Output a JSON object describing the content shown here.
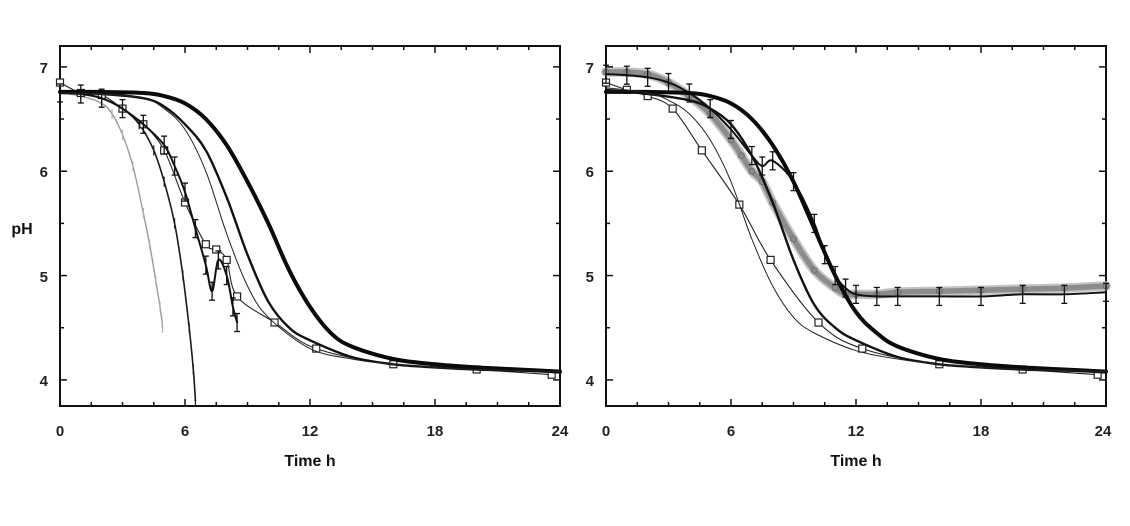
{
  "chart_data": [
    {
      "type": "line",
      "title": "",
      "xlabel": "Time h",
      "ylabel": "pH",
      "xlim": [
        0,
        24
      ],
      "ylim": [
        3.75,
        7.2
      ],
      "x_ticks": [
        "0",
        "6",
        "12",
        "18",
        "24"
      ],
      "y_ticks": [
        "4",
        "5",
        "6",
        "7"
      ],
      "grid": false,
      "series": [
        {
          "style": "gray-thin",
          "x": [
            0,
            1,
            2,
            2.5,
            3,
            3.5,
            4,
            4.3,
            4.6,
            4.8,
            4.9,
            4.92
          ],
          "y": [
            6.75,
            6.72,
            6.65,
            6.55,
            6.35,
            6.05,
            5.6,
            5.3,
            4.95,
            4.7,
            4.55,
            4.5
          ]
        },
        {
          "style": "dark-thin-ticks",
          "x": [
            0,
            1,
            2,
            3,
            3.8,
            4.5,
            5,
            5.5,
            5.9,
            6.2,
            6.4,
            6.5
          ],
          "y": [
            6.75,
            6.74,
            6.7,
            6.6,
            6.45,
            6.2,
            5.9,
            5.5,
            5.0,
            4.5,
            4.1,
            3.8
          ]
        },
        {
          "style": "squares",
          "x": [
            0,
            1,
            2,
            3,
            4,
            5,
            6,
            7,
            7.5,
            8,
            8.5,
            10.3,
            12.3,
            16,
            20,
            23.6
          ],
          "y": [
            6.85,
            6.75,
            6.73,
            6.6,
            6.45,
            6.2,
            5.7,
            5.3,
            5.25,
            5.15,
            4.8,
            4.55,
            4.3,
            4.15,
            4.1,
            4.05
          ]
        },
        {
          "style": "errorbars",
          "x": [
            0,
            1,
            2,
            3,
            4,
            5,
            5.5,
            6,
            6.5,
            7,
            7.3,
            7.6,
            8,
            8.3,
            8.5
          ],
          "y": [
            6.75,
            6.74,
            6.7,
            6.6,
            6.45,
            6.25,
            6.05,
            5.8,
            5.45,
            5.1,
            4.85,
            5.15,
            5.0,
            4.7,
            4.55
          ]
        },
        {
          "style": "medium",
          "x": [
            0,
            2,
            4,
            5,
            6,
            7,
            8,
            9,
            10,
            11,
            12,
            14,
            16,
            18,
            20,
            22,
            24
          ],
          "y": [
            6.75,
            6.74,
            6.7,
            6.62,
            6.45,
            6.2,
            5.75,
            5.2,
            4.75,
            4.5,
            4.38,
            4.22,
            4.15,
            4.12,
            4.1,
            4.09,
            4.08
          ]
        },
        {
          "style": "bold",
          "x": [
            0,
            2,
            4,
            5,
            6,
            7,
            8,
            9,
            10,
            11,
            12,
            13,
            14,
            16,
            18,
            20,
            22,
            24
          ],
          "y": [
            6.76,
            6.76,
            6.75,
            6.72,
            6.65,
            6.5,
            6.25,
            5.9,
            5.5,
            5.05,
            4.7,
            4.45,
            4.32,
            4.2,
            4.15,
            4.12,
            4.1,
            4.08
          ]
        },
        {
          "style": "thin",
          "x": [
            0,
            2,
            4,
            5,
            6,
            7,
            8,
            9,
            10,
            12,
            14,
            16,
            18,
            20,
            22,
            24
          ],
          "y": [
            6.75,
            6.74,
            6.7,
            6.6,
            6.4,
            6.0,
            5.4,
            4.9,
            4.6,
            4.3,
            4.2,
            4.15,
            4.12,
            4.1,
            4.09,
            4.08
          ]
        }
      ]
    },
    {
      "type": "line",
      "title": "",
      "xlabel": "Time h",
      "ylabel": "",
      "xlim": [
        0,
        24
      ],
      "ylim": [
        3.75,
        7.2
      ],
      "x_ticks": [
        "0",
        "6",
        "12",
        "18",
        "24"
      ],
      "y_ticks": [
        "4",
        "5",
        "6",
        "7"
      ],
      "grid": false,
      "series": [
        {
          "style": "squares",
          "x": [
            0,
            1,
            2,
            3.2,
            4.6,
            6.4,
            7.9,
            10.2,
            12.3,
            16,
            20,
            23.6
          ],
          "y": [
            6.85,
            6.78,
            6.72,
            6.6,
            6.2,
            5.68,
            5.15,
            4.55,
            4.3,
            4.15,
            4.1,
            4.05
          ]
        },
        {
          "style": "gray-band",
          "x": [
            0,
            1,
            2,
            3,
            4,
            5,
            6,
            6.5,
            7,
            7.5,
            8,
            9,
            10,
            11,
            11.5,
            12,
            13,
            14,
            16,
            18,
            20,
            22,
            24
          ],
          "y": [
            6.95,
            6.95,
            6.93,
            6.85,
            6.72,
            6.55,
            6.3,
            6.15,
            6.0,
            5.9,
            5.7,
            5.35,
            5.05,
            4.88,
            4.82,
            4.82,
            4.82,
            4.84,
            4.85,
            4.86,
            4.87,
            4.88,
            4.9
          ]
        },
        {
          "style": "errorbars",
          "x": [
            0,
            1,
            2,
            3,
            4,
            5,
            6,
            7,
            7.5,
            8,
            9,
            10,
            10.5,
            11,
            11.5,
            12,
            13,
            14,
            16,
            18,
            20,
            22,
            24
          ],
          "y": [
            6.93,
            6.92,
            6.9,
            6.85,
            6.75,
            6.6,
            6.4,
            6.15,
            6.05,
            6.1,
            5.9,
            5.5,
            5.2,
            5.0,
            4.88,
            4.82,
            4.8,
            4.8,
            4.8,
            4.8,
            4.82,
            4.82,
            4.84
          ]
        },
        {
          "style": "bold",
          "x": [
            0,
            2,
            4,
            5,
            6,
            7,
            8,
            9,
            10,
            11,
            12,
            13,
            14,
            16,
            18,
            20,
            22,
            24
          ],
          "y": [
            6.76,
            6.76,
            6.75,
            6.72,
            6.65,
            6.5,
            6.25,
            5.9,
            5.45,
            5.0,
            4.65,
            4.45,
            4.32,
            4.2,
            4.15,
            4.12,
            4.1,
            4.08
          ]
        },
        {
          "style": "medium",
          "x": [
            0,
            2,
            4,
            5,
            6,
            7,
            8,
            9,
            10,
            11,
            12,
            14,
            16,
            18,
            20,
            22,
            24
          ],
          "y": [
            6.78,
            6.74,
            6.68,
            6.6,
            6.45,
            6.15,
            5.7,
            5.15,
            4.72,
            4.5,
            4.38,
            4.22,
            4.15,
            4.12,
            4.1,
            4.09,
            4.08
          ]
        },
        {
          "style": "thin",
          "x": [
            0,
            2,
            3,
            4,
            5,
            6,
            7,
            8,
            9,
            10,
            12,
            14,
            16,
            18,
            20,
            22,
            24
          ],
          "y": [
            6.8,
            6.75,
            6.68,
            6.55,
            6.3,
            5.9,
            5.35,
            4.9,
            4.6,
            4.45,
            4.28,
            4.2,
            4.15,
            4.12,
            4.1,
            4.09,
            4.08
          ]
        }
      ]
    }
  ]
}
